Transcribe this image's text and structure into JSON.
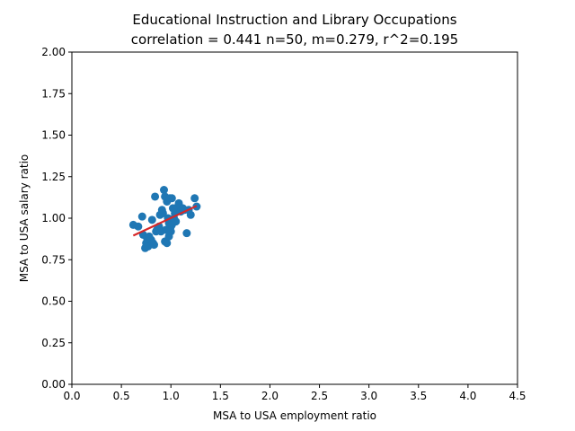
{
  "chart_data": {
    "type": "scatter",
    "title": "Educational Instruction and Library Occupations",
    "subtitle": "correlation = 0.441 n=50, m=0.279, r^2=0.195",
    "xlabel": "MSA to USA employment ratio",
    "ylabel": "MSA to USA salary ratio",
    "xlim": [
      0.0,
      4.5
    ],
    "ylim": [
      0.0,
      2.0
    ],
    "x_ticks": [
      "0.0",
      "0.5",
      "1.0",
      "1.5",
      "2.0",
      "2.5",
      "3.0",
      "3.5",
      "4.0",
      "4.5"
    ],
    "y_ticks": [
      "0.00",
      "0.25",
      "0.50",
      "0.75",
      "1.00",
      "1.25",
      "1.50",
      "1.75",
      "2.00"
    ],
    "grid": false,
    "point_color": "#1f77b4",
    "fit_color": "#d62728",
    "points": [
      {
        "x": 0.62,
        "y": 0.96
      },
      {
        "x": 0.67,
        "y": 0.95
      },
      {
        "x": 0.71,
        "y": 1.01
      },
      {
        "x": 0.72,
        "y": 0.9
      },
      {
        "x": 0.74,
        "y": 0.82
      },
      {
        "x": 0.75,
        "y": 0.85
      },
      {
        "x": 0.76,
        "y": 0.88
      },
      {
        "x": 0.77,
        "y": 0.83
      },
      {
        "x": 0.78,
        "y": 0.89
      },
      {
        "x": 0.8,
        "y": 0.87
      },
      {
        "x": 0.81,
        "y": 0.99
      },
      {
        "x": 0.82,
        "y": 0.85
      },
      {
        "x": 0.83,
        "y": 0.84
      },
      {
        "x": 0.84,
        "y": 1.13
      },
      {
        "x": 0.85,
        "y": 0.92
      },
      {
        "x": 0.86,
        "y": 0.93
      },
      {
        "x": 0.88,
        "y": 0.95
      },
      {
        "x": 0.89,
        "y": 1.02
      },
      {
        "x": 0.9,
        "y": 0.92
      },
      {
        "x": 0.91,
        "y": 1.05
      },
      {
        "x": 0.92,
        "y": 1.03
      },
      {
        "x": 0.93,
        "y": 1.17
      },
      {
        "x": 0.94,
        "y": 1.13
      },
      {
        "x": 0.94,
        "y": 0.86
      },
      {
        "x": 0.95,
        "y": 0.93
      },
      {
        "x": 0.96,
        "y": 1.1
      },
      {
        "x": 0.96,
        "y": 0.85
      },
      {
        "x": 0.97,
        "y": 1.0
      },
      {
        "x": 0.98,
        "y": 0.97
      },
      {
        "x": 0.98,
        "y": 0.89
      },
      {
        "x": 0.99,
        "y": 1.12
      },
      {
        "x": 1.0,
        "y": 0.95
      },
      {
        "x": 1.0,
        "y": 0.92
      },
      {
        "x": 1.01,
        "y": 1.12
      },
      {
        "x": 1.01,
        "y": 0.96
      },
      {
        "x": 1.02,
        "y": 1.06
      },
      {
        "x": 1.03,
        "y": 1.0
      },
      {
        "x": 1.04,
        "y": 1.03
      },
      {
        "x": 1.05,
        "y": 0.98
      },
      {
        "x": 1.06,
        "y": 1.05
      },
      {
        "x": 1.07,
        "y": 1.07
      },
      {
        "x": 1.08,
        "y": 1.09
      },
      {
        "x": 1.1,
        "y": 1.04
      },
      {
        "x": 1.12,
        "y": 1.06
      },
      {
        "x": 1.14,
        "y": 1.05
      },
      {
        "x": 1.16,
        "y": 0.91
      },
      {
        "x": 1.18,
        "y": 1.05
      },
      {
        "x": 1.2,
        "y": 1.02
      },
      {
        "x": 1.24,
        "y": 1.12
      },
      {
        "x": 1.26,
        "y": 1.07
      }
    ],
    "fit_line": {
      "x": [
        0.62,
        1.26
      ],
      "y": [
        0.895,
        1.074
      ]
    }
  }
}
